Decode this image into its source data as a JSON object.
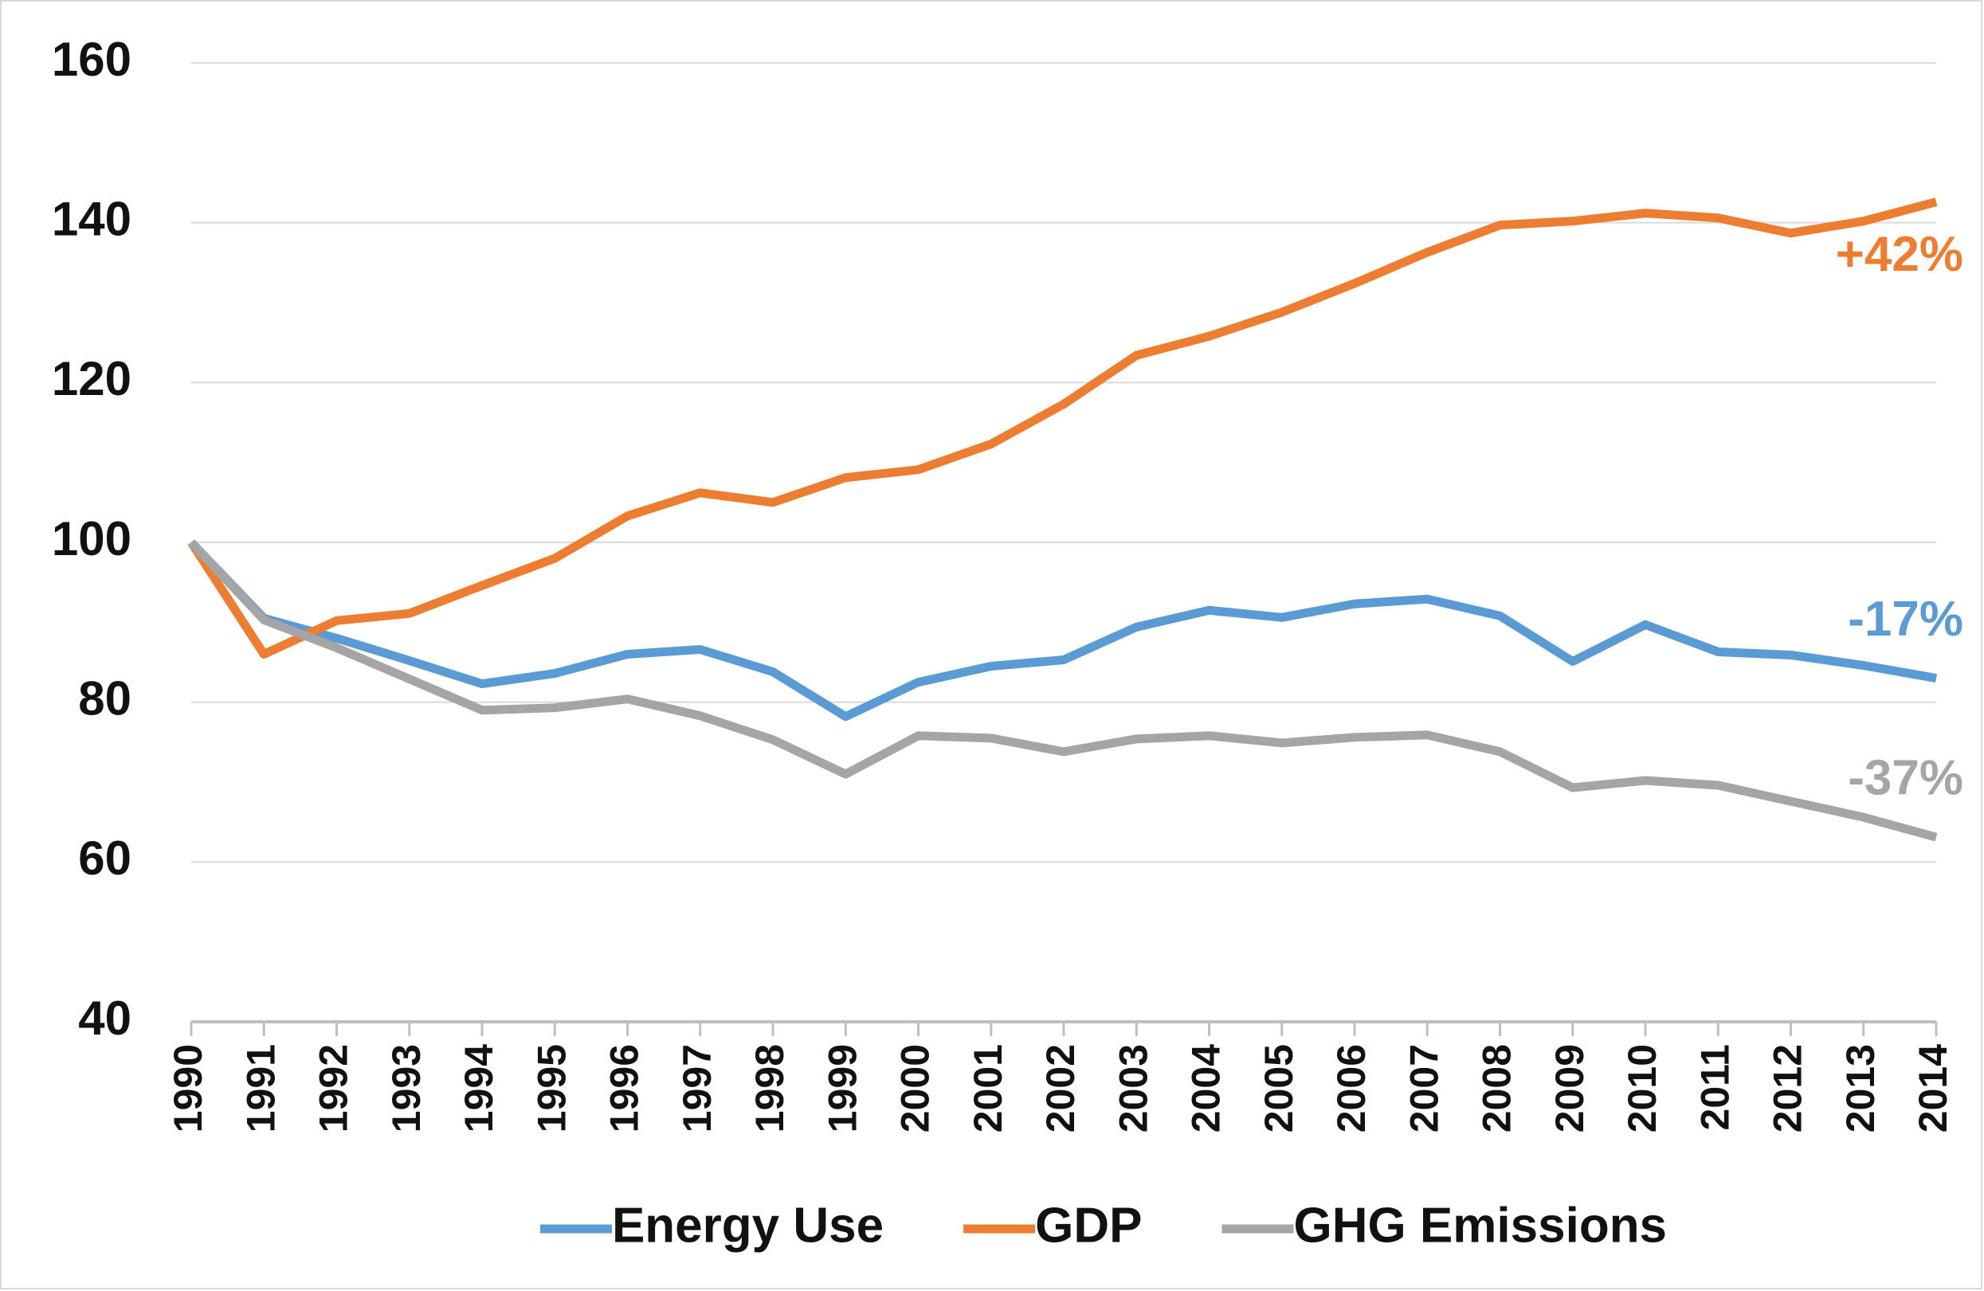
{
  "chart_data": {
    "type": "line",
    "categories": [
      "1990",
      "1991",
      "1992",
      "1993",
      "1994",
      "1995",
      "1996",
      "1997",
      "1998",
      "1999",
      "2000",
      "2001",
      "2002",
      "2003",
      "2004",
      "2005",
      "2006",
      "2007",
      "2008",
      "2009",
      "2010",
      "2011",
      "2012",
      "2013",
      "2014"
    ],
    "series": [
      {
        "name": "Energy Use",
        "color": "#5b9bd5",
        "end_label": "-17%",
        "values": [
          100,
          90.5,
          88,
          85.2,
          82.3,
          83.6,
          86,
          86.6,
          83.8,
          78.2,
          82.5,
          84.5,
          85.3,
          89.4,
          91.5,
          90.6,
          92.3,
          92.9,
          90.8,
          85.1,
          89.7,
          86.3,
          85.9,
          84.6,
          83
        ]
      },
      {
        "name": "GDP",
        "color": "#ed7d31",
        "end_label": "+42%",
        "values": [
          100,
          86,
          90.2,
          91.1,
          94.6,
          98,
          103.3,
          106.2,
          105,
          108.1,
          109.1,
          112.3,
          117.3,
          123.4,
          125.8,
          128.8,
          132.4,
          136.3,
          139.7,
          140.2,
          141.2,
          140.6,
          138.7,
          140.2,
          142.6
        ]
      },
      {
        "name": "GHG Emissions",
        "color": "#a5a5a5",
        "end_label": "-37%",
        "values": [
          100,
          90.3,
          86.8,
          82.9,
          79,
          79.3,
          80.4,
          78.3,
          75.3,
          71,
          75.8,
          75.5,
          73.8,
          75.4,
          75.8,
          74.9,
          75.6,
          75.9,
          73.8,
          69.3,
          70.2,
          69.6,
          67.6,
          65.6,
          63.1
        ]
      }
    ],
    "ylim": [
      40,
      160
    ],
    "yticks": [
      40,
      60,
      80,
      100,
      120,
      140,
      160
    ],
    "grid": true,
    "legend": "bottom"
  }
}
